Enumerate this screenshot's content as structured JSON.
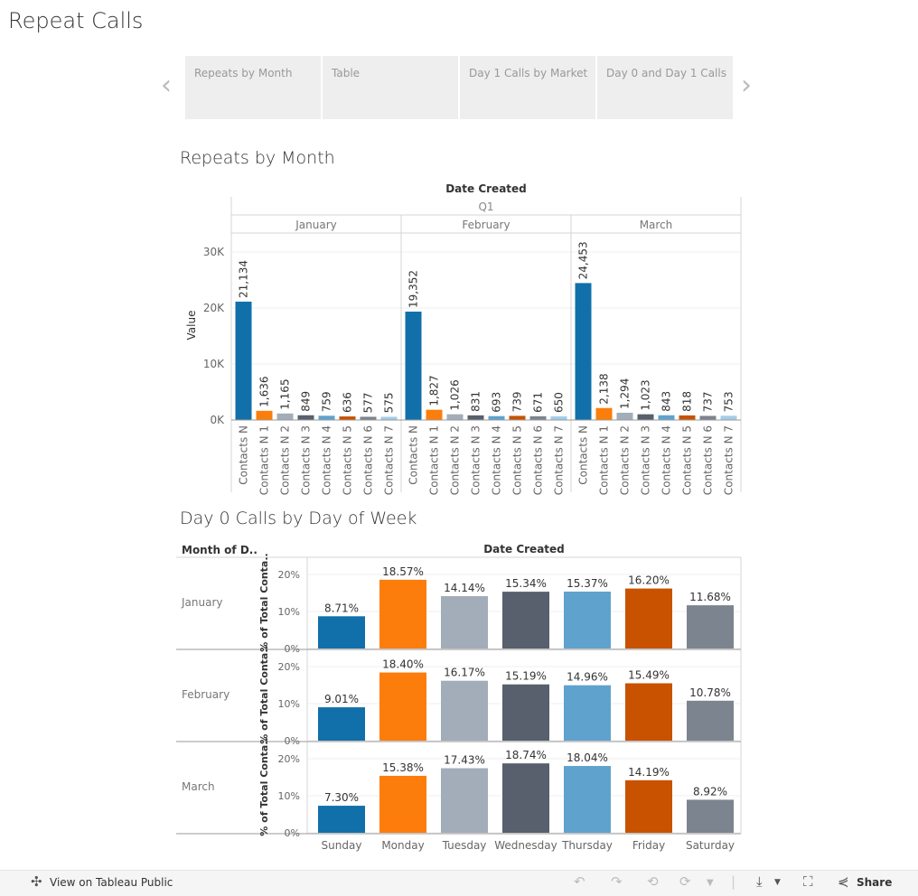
{
  "page": {
    "title": "Repeat Calls"
  },
  "tabs": [
    {
      "label": "Repeats by Month",
      "active": true
    },
    {
      "label": "Table",
      "active": false
    },
    {
      "label": "Day 1 Calls by Market",
      "active": false
    },
    {
      "label": "Day 0 and Day 1 Calls",
      "active": false
    }
  ],
  "nav": {
    "prev_icon": "‹",
    "next_icon": "›"
  },
  "sections": {
    "repeats": "Repeats by Month",
    "day0": "Day 0 Calls by Day of Week"
  },
  "footer": {
    "view_label": "View on Tableau Public",
    "share_label": "Share"
  },
  "colors": [
    "#1170aa",
    "#fc7d0b",
    "#a3acb9",
    "#57606c",
    "#5fa2ce",
    "#c85200",
    "#7b848f",
    "#a3cce9"
  ],
  "chart_data": [
    {
      "type": "bar",
      "header": "Date Created",
      "quarter": "Q1",
      "ylabel": "Value",
      "yticks": [
        0,
        10000,
        20000,
        30000
      ],
      "ytick_labels": [
        "0K",
        "10K",
        "20K",
        "30K"
      ],
      "ylim": [
        0,
        30000
      ],
      "categories": [
        "Contacts N",
        "Contacts N 1",
        "Contacts N 2",
        "Contacts N 3",
        "Contacts N 4",
        "Contacts N 5",
        "Contacts N 6",
        "Contacts N 7"
      ],
      "groups": [
        {
          "name": "January",
          "values": [
            21134,
            1636,
            1165,
            849,
            759,
            636,
            577,
            575
          ],
          "labels": [
            "21,134",
            "1,636",
            "1,165",
            "849",
            "759",
            "636",
            "577",
            "575"
          ]
        },
        {
          "name": "February",
          "values": [
            19352,
            1827,
            1026,
            831,
            693,
            739,
            671,
            650
          ],
          "labels": [
            "19,352",
            "1,827",
            "1,026",
            "831",
            "693",
            "739",
            "671",
            "650"
          ]
        },
        {
          "name": "March",
          "values": [
            24453,
            2138,
            1294,
            1023,
            843,
            818,
            737,
            753
          ],
          "labels": [
            "24,453",
            "2,138",
            "1,294",
            "1,023",
            "843",
            "818",
            "737",
            "753"
          ]
        }
      ]
    },
    {
      "type": "bar",
      "header": "Date Created",
      "row_header": "Month of D..",
      "ylabel": "% of Total Conta..",
      "yticks": [
        0,
        10,
        20
      ],
      "ytick_labels": [
        "0%",
        "10%",
        "20%"
      ],
      "ylim": [
        0,
        22
      ],
      "categories": [
        "Sunday",
        "Monday",
        "Tuesday",
        "Wednesday",
        "Thursday",
        "Friday",
        "Saturday"
      ],
      "rows": [
        {
          "name": "January",
          "values": [
            8.71,
            18.57,
            14.14,
            15.34,
            15.37,
            16.2,
            11.68
          ],
          "labels": [
            "8.71%",
            "18.57%",
            "14.14%",
            "15.34%",
            "15.37%",
            "16.20%",
            "11.68%"
          ]
        },
        {
          "name": "February",
          "values": [
            9.01,
            18.4,
            16.17,
            15.19,
            14.96,
            15.49,
            10.78
          ],
          "labels": [
            "9.01%",
            "18.40%",
            "16.17%",
            "15.19%",
            "14.96%",
            "15.49%",
            "10.78%"
          ]
        },
        {
          "name": "March",
          "values": [
            7.3,
            15.38,
            17.43,
            18.74,
            18.04,
            14.19,
            8.92
          ],
          "labels": [
            "7.30%",
            "15.38%",
            "17.43%",
            "18.74%",
            "18.04%",
            "14.19%",
            "8.92%"
          ]
        }
      ]
    }
  ]
}
